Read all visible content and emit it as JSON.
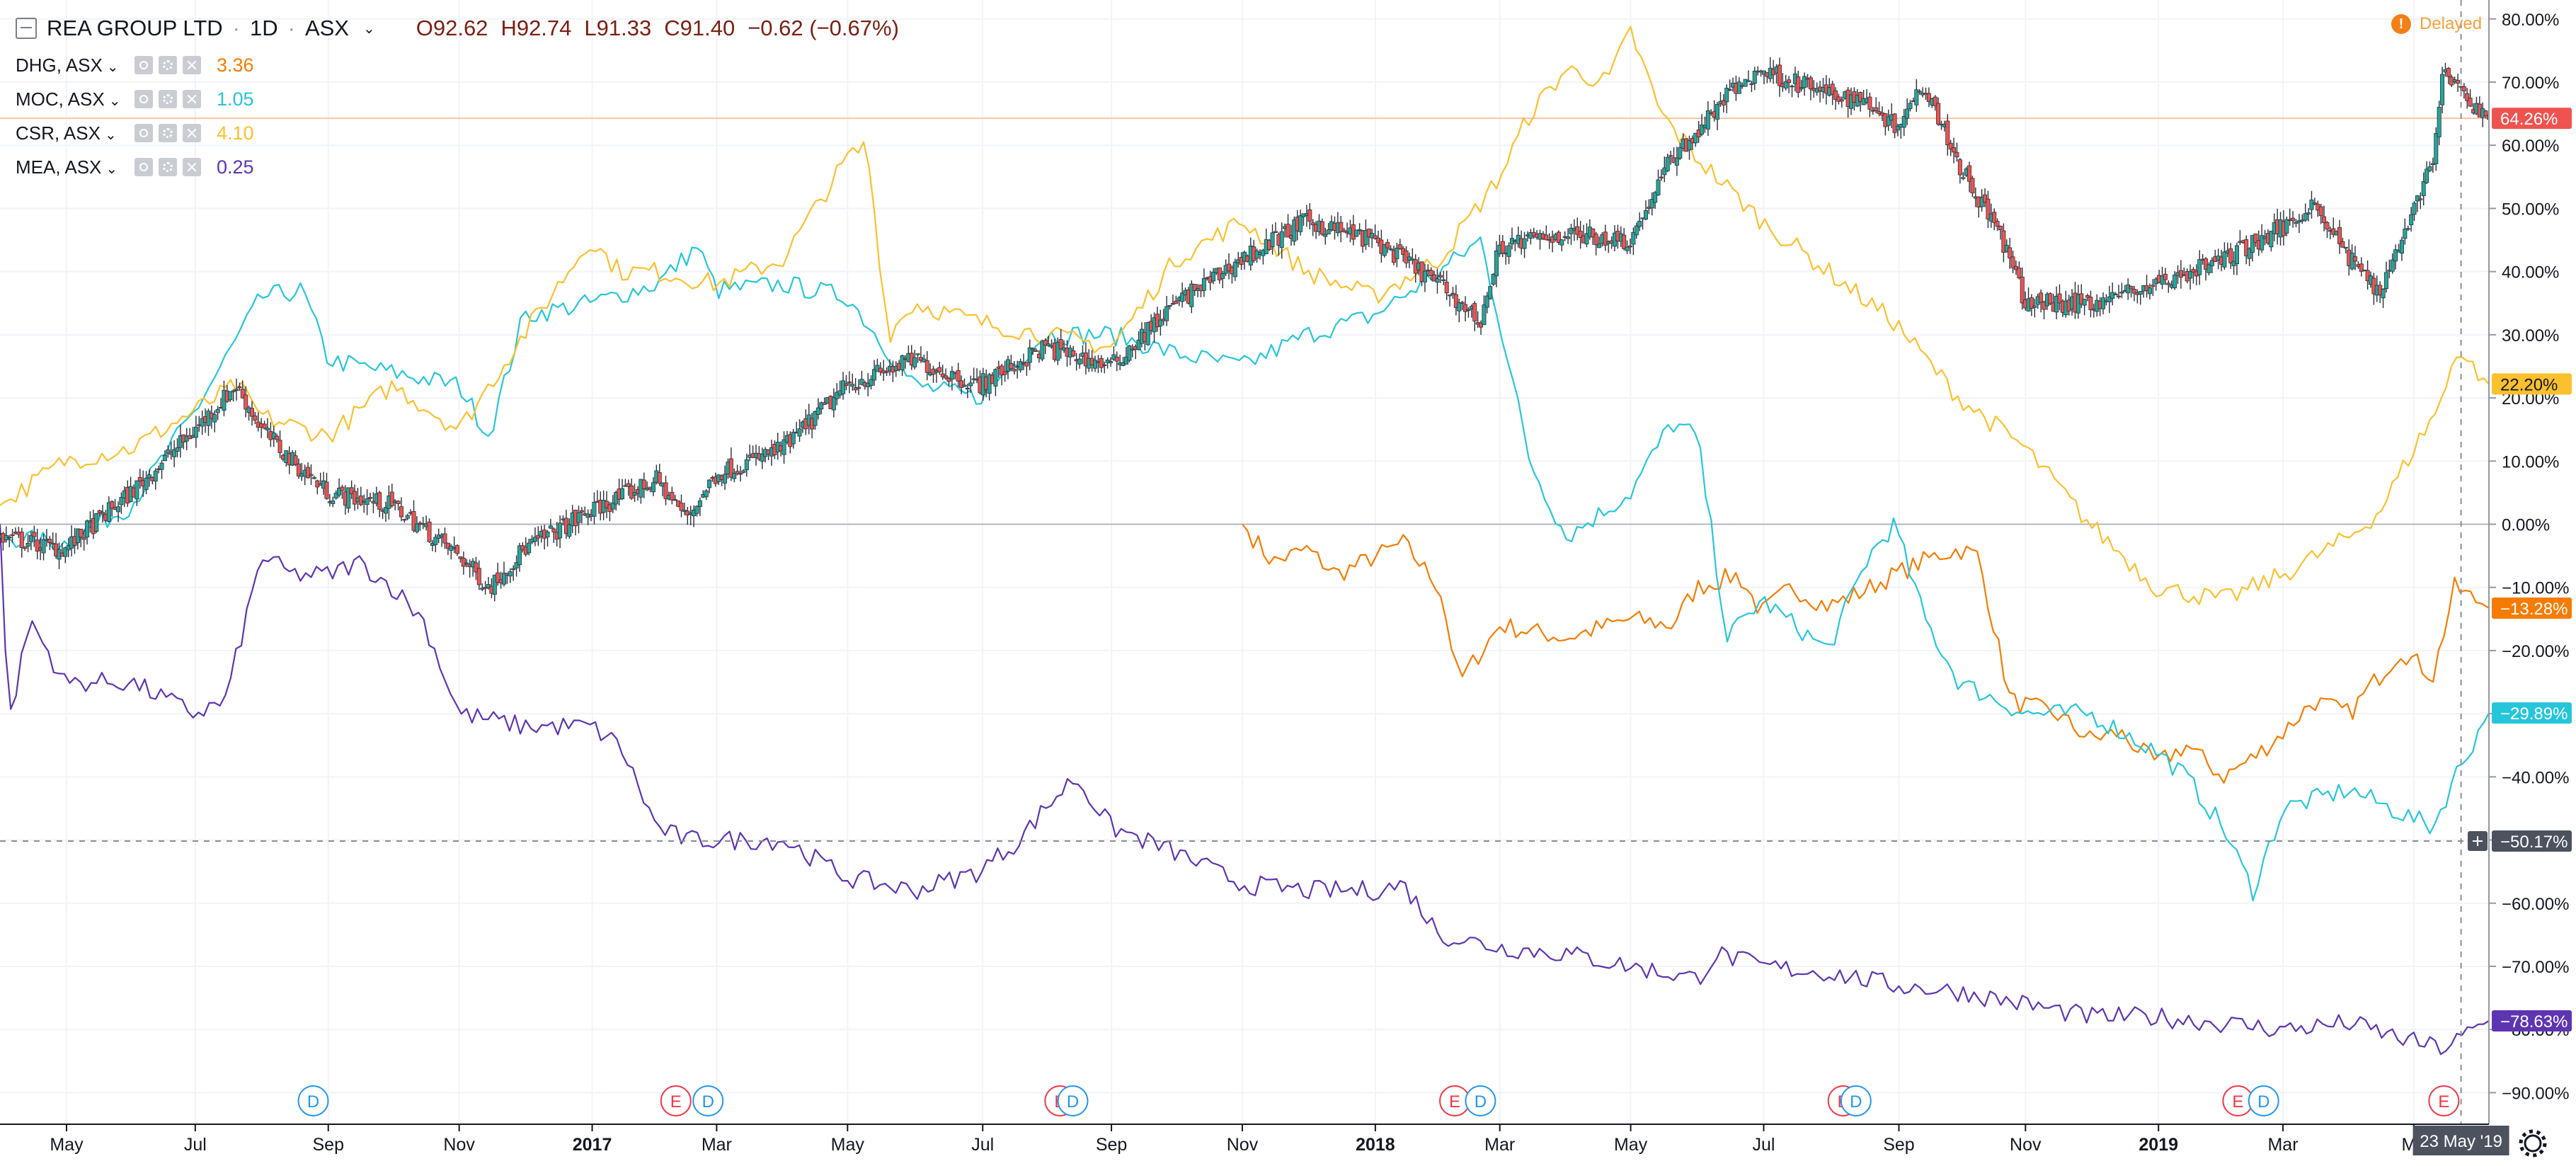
{
  "legend": {
    "symbol": "REA GROUP LTD",
    "interval": "1D",
    "exchange": "ASX",
    "sep1": "·",
    "sep2": "·",
    "open": "O92.62",
    "high": "H92.74",
    "low": "L91.33",
    "close": "C91.40",
    "change": "−0.62 (−0.67%)",
    "compare": [
      {
        "name": "DHG, ASX",
        "value": "3.36",
        "color": "#f57c00"
      },
      {
        "name": "MOC, ASX",
        "value": "1.05",
        "color": "#26c6da"
      },
      {
        "name": "CSR, ASX",
        "value": "4.10",
        "color": "#fbc02d"
      },
      {
        "name": "MEA, ASX",
        "value": "0.25",
        "color": "#5e35b1"
      }
    ]
  },
  "status": {
    "delayed_label": "Delayed",
    "delayed_icon": "!"
  },
  "crosshair": {
    "price_label": "−50.17%",
    "date_label": "23 May '19"
  },
  "colors": {
    "main_up": "#26a69a",
    "main_down": "#ef5350",
    "main_line": "#7b1f12",
    "dhg": "#f57c00",
    "moc": "#26c6da",
    "csr": "#fbc02d",
    "mea": "#5e35b1"
  },
  "chart_data": {
    "type": "line",
    "title": "",
    "ylabel": "",
    "y_scale": "percent",
    "ylim": [
      -95,
      83
    ],
    "y_ticks": [
      "80.00%",
      "70.00%",
      "60.00%",
      "50.00%",
      "40.00%",
      "30.00%",
      "20.00%",
      "10.00%",
      "0.00%",
      "−10.00%",
      "−20.00%",
      "−30.00%",
      "−40.00%",
      "−50.00%",
      "−60.00%",
      "−70.00%",
      "−80.00%",
      "−90.00%"
    ],
    "y_tick_values": [
      80,
      70,
      60,
      50,
      40,
      30,
      20,
      10,
      0,
      -10,
      -20,
      -30,
      -40,
      -50,
      -60,
      -70,
      -80,
      -90
    ],
    "x_range": [
      "2016-04-01",
      "2019-06-05"
    ],
    "x_ticks": [
      {
        "label": "May",
        "date": "2016-05-02",
        "bold": false
      },
      {
        "label": "Jul",
        "date": "2016-07-01",
        "bold": false
      },
      {
        "label": "Sep",
        "date": "2016-09-01",
        "bold": false
      },
      {
        "label": "Nov",
        "date": "2016-11-01",
        "bold": false
      },
      {
        "label": "2017",
        "date": "2017-01-02",
        "bold": true
      },
      {
        "label": "Mar",
        "date": "2017-03-01",
        "bold": false
      },
      {
        "label": "May",
        "date": "2017-05-01",
        "bold": false
      },
      {
        "label": "Jul",
        "date": "2017-07-03",
        "bold": false
      },
      {
        "label": "Sep",
        "date": "2017-09-01",
        "bold": false
      },
      {
        "label": "Nov",
        "date": "2017-11-01",
        "bold": false
      },
      {
        "label": "2018",
        "date": "2018-01-02",
        "bold": true
      },
      {
        "label": "Mar",
        "date": "2018-03-01",
        "bold": false
      },
      {
        "label": "May",
        "date": "2018-05-01",
        "bold": false
      },
      {
        "label": "Jul",
        "date": "2018-07-02",
        "bold": false
      },
      {
        "label": "Sep",
        "date": "2018-09-03",
        "bold": false
      },
      {
        "label": "Nov",
        "date": "2018-11-01",
        "bold": false
      },
      {
        "label": "2019",
        "date": "2019-01-02",
        "bold": true
      },
      {
        "label": "Mar",
        "date": "2019-03-01",
        "bold": false
      },
      {
        "label": "Ma",
        "date": "2019-05-01",
        "bold": false
      }
    ],
    "series": [
      {
        "name": "REA GROUP LTD",
        "style": "candles",
        "last_label": "64.26%",
        "last": 64.26,
        "dates": [
          "2016-04-01",
          "2016-05-01",
          "2016-06-01",
          "2016-07-01",
          "2016-07-20",
          "2016-08-01",
          "2016-08-15",
          "2016-09-01",
          "2016-10-01",
          "2016-11-01",
          "2016-11-15",
          "2016-12-01",
          "2017-01-01",
          "2017-02-01",
          "2017-02-15",
          "2017-03-01",
          "2017-04-01",
          "2017-05-01",
          "2017-06-01",
          "2017-07-01",
          "2017-08-01",
          "2017-09-01",
          "2017-10-01",
          "2017-11-01",
          "2017-12-01",
          "2018-01-01",
          "2018-02-01",
          "2018-02-20",
          "2018-03-01",
          "2018-04-01",
          "2018-05-01",
          "2018-05-20",
          "2018-06-01",
          "2018-06-15",
          "2018-07-01",
          "2018-08-01",
          "2018-08-20",
          "2018-09-01",
          "2018-09-15",
          "2018-10-01",
          "2018-10-20",
          "2018-11-01",
          "2018-12-01",
          "2019-01-01",
          "2019-02-01",
          "2019-03-01",
          "2019-03-15",
          "2019-04-01",
          "2019-04-15",
          "2019-05-01",
          "2019-05-10",
          "2019-05-15",
          "2019-05-23",
          "2019-06-05"
        ],
        "values": [
          -2,
          -4,
          5,
          15,
          22,
          15,
          10,
          5,
          3,
          -5,
          -10,
          -4,
          2,
          7,
          1,
          8,
          12,
          22,
          26,
          22,
          28,
          25,
          35,
          42,
          48,
          45,
          38,
          32,
          44,
          46,
          45,
          58,
          62,
          68,
          72,
          68,
          67,
          63,
          70,
          57,
          46,
          35,
          35,
          38,
          42,
          47,
          51,
          42,
          37,
          50,
          58,
          72,
          68,
          64.26
        ]
      },
      {
        "name": "DHG, ASX",
        "style": "line",
        "last_label": "−13.28%",
        "last": -13.28,
        "dates": [
          "2017-11-01",
          "2017-11-15",
          "2017-12-01",
          "2017-12-15",
          "2018-01-15",
          "2018-02-01",
          "2018-02-10",
          "2018-03-01",
          "2018-04-01",
          "2018-05-01",
          "2018-05-20",
          "2018-06-01",
          "2018-06-20",
          "2018-07-01",
          "2018-07-15",
          "2018-08-01",
          "2018-08-15",
          "2018-09-01",
          "2018-09-20",
          "2018-10-01",
          "2018-10-10",
          "2018-10-25",
          "2018-11-15",
          "2018-12-01",
          "2018-12-15",
          "2019-01-01",
          "2019-01-15",
          "2019-02-01",
          "2019-02-15",
          "2019-03-01",
          "2019-03-15",
          "2019-04-01",
          "2019-04-10",
          "2019-04-25",
          "2019-05-10",
          "2019-05-20",
          "2019-06-05"
        ],
        "values": [
          0,
          -6,
          -4,
          -8,
          -3,
          -10,
          -25,
          -16,
          -18,
          -15,
          -16,
          -10,
          -8,
          -14,
          -10,
          -13,
          -11,
          -8,
          -5,
          -4,
          -5,
          -28,
          -30,
          -34,
          -33,
          -38,
          -35,
          -40,
          -37,
          -33,
          -28,
          -30,
          -26,
          -20,
          -24,
          -10,
          -13.28
        ]
      },
      {
        "name": "MOC, ASX",
        "style": "line",
        "last_label": "−29.89%",
        "last": -29.89,
        "dates": [
          "2016-04-01",
          "2016-05-01",
          "2016-06-01",
          "2016-07-01",
          "2016-08-01",
          "2016-08-20",
          "2016-09-01",
          "2016-10-01",
          "2016-11-01",
          "2016-11-15",
          "2016-12-01",
          "2017-01-01",
          "2017-02-01",
          "2017-02-20",
          "2017-03-01",
          "2017-04-01",
          "2017-05-01",
          "2017-06-01",
          "2017-07-01",
          "2017-08-01",
          "2017-09-01",
          "2017-10-01",
          "2017-11-01",
          "2017-12-01",
          "2018-01-01",
          "2018-02-01",
          "2018-02-20",
          "2018-03-01",
          "2018-03-15",
          "2018-04-01",
          "2018-05-01",
          "2018-05-20",
          "2018-06-01",
          "2018-06-15",
          "2018-07-01",
          "2018-08-01",
          "2018-08-20",
          "2018-09-01",
          "2018-09-15",
          "2018-10-01",
          "2018-11-01",
          "2018-12-01",
          "2019-01-01",
          "2019-01-15",
          "2019-02-01",
          "2019-02-15",
          "2019-03-01",
          "2019-04-01",
          "2019-04-20",
          "2019-05-10",
          "2019-05-20",
          "2019-06-05"
        ],
        "values": [
          -2,
          -3,
          3,
          18,
          36,
          37,
          26,
          24,
          22,
          14,
          33,
          35,
          38,
          44,
          37,
          38,
          36,
          22,
          20,
          30,
          30,
          27,
          25,
          30,
          33,
          40,
          45,
          32,
          10,
          -2,
          5,
          16,
          14,
          -18,
          -12,
          -20,
          -5,
          0,
          -15,
          -25,
          -30,
          -30,
          -36,
          -40,
          -48,
          -58,
          -45,
          -42,
          -45,
          -48,
          -40,
          -29.89
        ]
      },
      {
        "name": "CSR, ASX",
        "style": "line",
        "last_label": "22.20%",
        "last": 22.2,
        "dates": [
          "2016-04-01",
          "2016-05-01",
          "2016-06-01",
          "2016-07-01",
          "2016-07-20",
          "2016-08-01",
          "2016-09-01",
          "2016-10-01",
          "2016-11-01",
          "2016-12-01",
          "2017-01-01",
          "2017-01-15",
          "2017-02-01",
          "2017-03-01",
          "2017-04-01",
          "2017-05-01",
          "2017-05-10",
          "2017-05-20",
          "2017-06-01",
          "2017-07-01",
          "2017-08-01",
          "2017-09-01",
          "2017-10-01",
          "2017-11-01",
          "2017-12-01",
          "2018-01-01",
          "2018-02-01",
          "2018-03-01",
          "2018-03-15",
          "2018-04-01",
          "2018-04-20",
          "2018-05-01",
          "2018-05-15",
          "2018-06-01",
          "2018-07-01",
          "2018-08-01",
          "2018-09-01",
          "2018-10-01",
          "2018-11-01",
          "2018-12-01",
          "2019-01-01",
          "2019-02-01",
          "2019-03-01",
          "2019-04-01",
          "2019-04-15",
          "2019-05-01",
          "2019-05-15",
          "2019-05-20",
          "2019-06-05"
        ],
        "values": [
          3,
          10,
          12,
          18,
          22,
          17,
          14,
          22,
          15,
          30,
          45,
          40,
          40,
          38,
          42,
          58,
          60,
          30,
          35,
          32,
          30,
          28,
          42,
          48,
          40,
          36,
          42,
          55,
          65,
          72,
          70,
          78,
          65,
          58,
          48,
          40,
          32,
          20,
          12,
          0,
          -10,
          -12,
          -8,
          -2,
          2,
          12,
          20,
          28,
          22.2
        ]
      },
      {
        "name": "MEA, ASX",
        "style": "line",
        "last_label": "−78.63%",
        "last": -78.63,
        "dates": [
          "2016-04-01",
          "2016-04-05",
          "2016-04-15",
          "2016-05-01",
          "2016-06-01",
          "2016-07-01",
          "2016-07-15",
          "2016-08-01",
          "2016-08-15",
          "2016-09-01",
          "2016-09-15",
          "2016-10-01",
          "2016-10-15",
          "2016-11-01",
          "2016-12-01",
          "2017-01-01",
          "2017-01-15",
          "2017-02-01",
          "2017-02-15",
          "2017-03-01",
          "2017-04-01",
          "2017-05-01",
          "2017-06-01",
          "2017-07-01",
          "2017-07-20",
          "2017-08-01",
          "2017-08-15",
          "2017-09-01",
          "2017-10-01",
          "2017-11-01",
          "2017-12-01",
          "2018-01-01",
          "2018-01-15",
          "2018-02-01",
          "2018-03-01",
          "2018-04-01",
          "2018-05-01",
          "2018-06-01",
          "2018-06-10",
          "2018-07-01",
          "2018-08-01",
          "2018-09-01",
          "2018-10-01",
          "2018-11-01",
          "2018-12-01",
          "2019-01-01",
          "2019-02-01",
          "2019-03-01",
          "2019-04-01",
          "2019-05-01",
          "2019-05-15",
          "2019-06-05"
        ],
        "values": [
          0,
          -32,
          -15,
          -25,
          -25,
          -30,
          -28,
          -5,
          -8,
          -8,
          -6,
          -10,
          -15,
          -30,
          -32,
          -32,
          -35,
          -48,
          -50,
          -50,
          -50,
          -56,
          -58,
          -55,
          -50,
          -45,
          -40,
          -48,
          -52,
          -57,
          -58,
          -58,
          -57,
          -65,
          -67,
          -68,
          -70,
          -72,
          -68,
          -70,
          -71,
          -73,
          -74,
          -76,
          -78,
          -78,
          -79,
          -80,
          -79,
          -82,
          -83,
          -78.63
        ]
      }
    ],
    "events": [
      {
        "type": "D",
        "date": "2016-08-25",
        "color": "#2196f3"
      },
      {
        "type": "E",
        "date": "2017-02-10",
        "color": "#f23645"
      },
      {
        "type": "D",
        "date": "2017-02-25",
        "color": "#2196f3"
      },
      {
        "type": "E",
        "date": "2017-08-08",
        "color": "#f23645"
      },
      {
        "type": "D",
        "date": "2017-08-14",
        "color": "#2196f3"
      },
      {
        "type": "E",
        "date": "2018-02-08",
        "color": "#f23645"
      },
      {
        "type": "D",
        "date": "2018-02-20",
        "color": "#2196f3"
      },
      {
        "type": "E",
        "date": "2018-08-08",
        "color": "#f23645"
      },
      {
        "type": "D",
        "date": "2018-08-14",
        "color": "#2196f3"
      },
      {
        "type": "E",
        "date": "2019-02-08",
        "color": "#f23645"
      },
      {
        "type": "D",
        "date": "2019-02-20",
        "color": "#2196f3"
      },
      {
        "type": "E",
        "date": "2019-05-15",
        "color": "#f23645"
      }
    ],
    "grid": true,
    "legend_position": "top-left"
  }
}
